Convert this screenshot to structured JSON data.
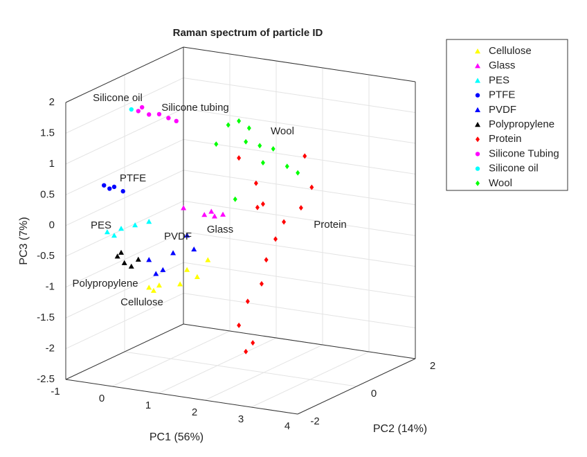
{
  "chart_data": {
    "type": "scatter3d",
    "title": "Raman spectrum of particle ID",
    "xlabel": "PC1 (56%)",
    "ylabel": "PC2 (14%)",
    "zlabel": "PC3 (7%)",
    "xlim": [
      -1,
      4
    ],
    "xticks": [
      -1,
      0,
      1,
      2,
      3,
      4
    ],
    "ylim": [
      -2,
      2
    ],
    "yticks": [
      -2,
      0,
      2
    ],
    "zlim": [
      -2.5,
      2
    ],
    "zticks": [
      -2.5,
      -2,
      -1.5,
      -1,
      -0.5,
      0,
      0.5,
      1,
      1.5,
      2
    ],
    "grid": true,
    "legend": "outside-top-right",
    "series": [
      {
        "name": "Cellulose",
        "color": "#ffff00",
        "marker": "^",
        "x": [
          0.16,
          0.38,
          0.83,
          1.2,
          0.98,
          1.43,
          0.26
        ],
        "y": [
          -1,
          -1,
          -1,
          -1,
          -1,
          -1,
          -1
        ],
        "z": [
          -1.1,
          -1.04,
          -0.97,
          -0.81,
          -0.72,
          -0.51,
          -1.14
        ]
      },
      {
        "name": "Glass",
        "color": "#ff00ff",
        "marker": "^",
        "x": [
          0.72,
          0.94,
          1.12,
          0.87,
          0.27
        ],
        "y": [
          0,
          0,
          0,
          0,
          0
        ],
        "z": [
          -0.08,
          -0.08,
          -0.03,
          -0.01,
          -0.02
        ]
      },
      {
        "name": "PES",
        "color": "#00ffff",
        "marker": "^",
        "x": [
          -0.74,
          -0.44,
          -0.14,
          0.16,
          -0.59
        ],
        "y": [
          -1,
          -1,
          -1,
          -1,
          -1
        ],
        "z": [
          -0.3,
          -0.21,
          -0.12,
          -0.03,
          -0.34
        ]
      },
      {
        "name": "PTFE",
        "color": "#0000ff",
        "marker": "o",
        "x": [
          -0.81,
          -0.59,
          -0.4,
          -0.69
        ],
        "y": [
          -1,
          -1,
          -1,
          -1
        ],
        "z": [
          0.45,
          0.45,
          0.4,
          0.41
        ]
      },
      {
        "name": "PVDF",
        "color": "#0000ff",
        "marker": "^",
        "x": [
          0.16,
          0.46,
          0.68,
          0.98,
          1.13,
          0.31
        ],
        "y": [
          -1,
          -1,
          -1,
          -1,
          -1,
          -1
        ],
        "z": [
          -0.65,
          -0.78,
          -0.48,
          -0.16,
          -0.37,
          -0.86
        ]
      },
      {
        "name": "Polypropylene",
        "color": "#000000",
        "marker": "^",
        "x": [
          -0.52,
          -0.37,
          -0.22,
          -0.07,
          -0.44
        ],
        "y": [
          -1,
          -1,
          -1,
          -1,
          -1
        ],
        "z": [
          -0.67,
          -0.76,
          -0.8,
          -0.67,
          -0.6
        ]
      },
      {
        "name": "Protein",
        "color": "#ff0000",
        "marker": "d",
        "x": [
          0.83,
          1.2,
          1.35,
          1.8,
          1.42,
          1.32,
          1.02,
          0.83,
          0.98,
          2.25,
          2.4,
          2.17,
          1.13,
          1.62,
          1.23
        ],
        "y": [
          1,
          1,
          1,
          1,
          1,
          1,
          1,
          1,
          1,
          1,
          1,
          1,
          1,
          1,
          1
        ],
        "z": [
          0.63,
          0.26,
          -0.06,
          -0.3,
          -0.96,
          -1.36,
          -1.68,
          -2.09,
          -2.5,
          0.82,
          0.33,
          -0.03,
          -2.34,
          -0.6,
          -0.13
        ]
      },
      {
        "name": "Silicone Tubing",
        "color": "#ff00ff",
        "marker": "o",
        "x": [
          -0.07,
          0.16,
          0.38,
          0.58,
          0.75,
          0.01
        ],
        "y": [
          -1,
          -1,
          -1,
          -1,
          -1,
          -1
        ],
        "z": [
          1.74,
          1.71,
          1.74,
          1.7,
          1.67,
          1.81
        ]
      },
      {
        "name": "Silicone oil",
        "color": "#00ffff",
        "marker": "o",
        "x": [
          -0.22
        ],
        "y": [
          -1
        ],
        "z": [
          1.75
        ]
      },
      {
        "name": "Wool",
        "color": "#00ff00",
        "marker": "d",
        "x": [
          0.6,
          0.83,
          1.05,
          0.98,
          1.28,
          1.57,
          1.35,
          2.1,
          0.34,
          0.75,
          1.87
        ],
        "y": [
          1,
          1,
          1,
          1,
          1,
          1,
          1,
          1,
          1,
          1,
          1
        ],
        "z": [
          1.14,
          1.23,
          1.14,
          0.91,
          0.88,
          0.86,
          0.61,
          0.53,
          0.8,
          -0.05,
          0.61
        ]
      }
    ],
    "annotations": [
      "Silicone oil",
      "Silicone tubing",
      "Wool",
      "PTFE",
      "PES",
      "PVDF",
      "Glass",
      "Protein",
      "Polypropylene",
      "Cellulose"
    ]
  }
}
